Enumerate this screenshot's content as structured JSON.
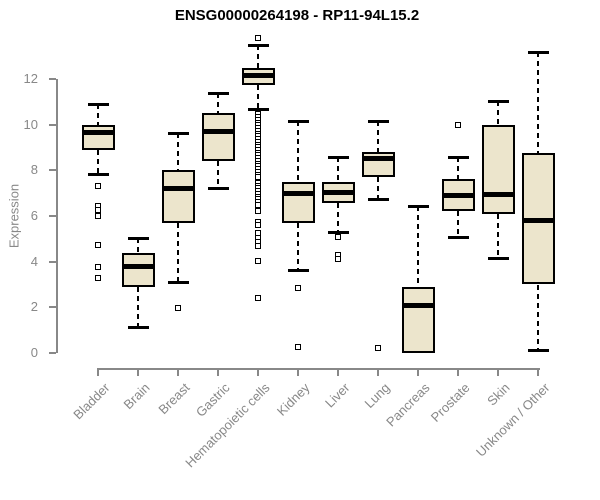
{
  "title": "ENSG00000264198 - RP11-94L15.2",
  "colors": {
    "box_fill": "#ECE5CC",
    "box_border": "#000000",
    "median": "#000000",
    "axis": "#888888",
    "tick_text": "#888888",
    "title_text": "#000000",
    "background": "#ffffff"
  },
  "chart_data": {
    "type": "boxplot",
    "title": "ENSG00000264198 - RP11-94L15.2",
    "xlabel": "",
    "ylabel": "Expression",
    "ylim": [
      0,
      12
    ],
    "yticks": [
      0,
      2,
      4,
      6,
      8,
      10,
      12
    ],
    "grid": false,
    "legend": "none",
    "categories": [
      "Bladder",
      "Brain",
      "Breast",
      "Gastric",
      "Hematopoietic cells",
      "Kidney",
      "Liver",
      "Lung",
      "Pancreas",
      "Prostate",
      "Skin",
      "Unknown / Other"
    ],
    "series": [
      {
        "category": "Bladder",
        "whisker_low": 7.8,
        "q1": 8.9,
        "median": 9.65,
        "q3": 10.0,
        "whisker_high": 10.9,
        "outliers": [
          7.3,
          6.45,
          6.25,
          6.0,
          4.75,
          3.75,
          3.3
        ]
      },
      {
        "category": "Brain",
        "whisker_low": 1.1,
        "q1": 2.9,
        "median": 3.8,
        "q3": 4.4,
        "whisker_high": 5.05,
        "outliers": []
      },
      {
        "category": "Breast",
        "whisker_low": 3.05,
        "q1": 5.7,
        "median": 7.2,
        "q3": 8.0,
        "whisker_high": 9.65,
        "outliers": [
          1.95
        ]
      },
      {
        "category": "Gastric",
        "whisker_low": 7.2,
        "q1": 8.4,
        "median": 9.7,
        "q3": 10.5,
        "whisker_high": 11.4,
        "outliers": []
      },
      {
        "category": "Hematopoietic cells",
        "whisker_low": 10.64,
        "q1": 11.74,
        "median": 12.15,
        "q3": 12.47,
        "whisker_high": 13.5,
        "outliers": [
          13.8,
          10.45,
          10.33,
          10.21,
          10.09,
          9.97,
          9.85,
          9.73,
          9.61,
          9.49,
          9.37,
          9.25,
          9.13,
          9.01,
          8.89,
          8.77,
          8.65,
          8.53,
          8.41,
          8.29,
          8.17,
          8.05,
          7.93,
          7.81,
          7.7,
          7.45,
          7.33,
          7.21,
          7.09,
          6.97,
          6.85,
          6.73,
          6.61,
          6.49,
          6.2,
          5.75,
          5.6,
          5.25,
          5.05,
          4.85,
          4.7,
          4.05,
          2.4
        ]
      },
      {
        "category": "Kidney",
        "whisker_low": 3.6,
        "q1": 5.7,
        "median": 7.0,
        "q3": 7.5,
        "whisker_high": 10.15,
        "outliers": [
          2.85,
          0.25
        ]
      },
      {
        "category": "Liver",
        "whisker_low": 5.25,
        "q1": 6.55,
        "median": 7.05,
        "q3": 7.5,
        "whisker_high": 8.6,
        "outliers": [
          5.1,
          4.3,
          4.12
        ]
      },
      {
        "category": "Lung",
        "whisker_low": 6.7,
        "q1": 7.7,
        "median": 8.5,
        "q3": 8.8,
        "whisker_high": 10.15,
        "outliers": [
          0.2
        ]
      },
      {
        "category": "Pancreas",
        "whisker_low": 0.0,
        "q1": 0.0,
        "median": 2.1,
        "q3": 2.9,
        "whisker_high": 6.45,
        "outliers": []
      },
      {
        "category": "Prostate",
        "whisker_low": 5.05,
        "q1": 6.2,
        "median": 6.9,
        "q3": 7.6,
        "whisker_high": 8.6,
        "outliers": [
          10.0
        ]
      },
      {
        "category": "Skin",
        "whisker_low": 4.1,
        "q1": 6.1,
        "median": 6.95,
        "q3": 10.0,
        "whisker_high": 11.05,
        "outliers": []
      },
      {
        "category": "Unknown / Other",
        "whisker_low": 0.1,
        "q1": 3.0,
        "median": 5.8,
        "q3": 8.75,
        "whisker_high": 13.2,
        "outliers": []
      }
    ]
  }
}
